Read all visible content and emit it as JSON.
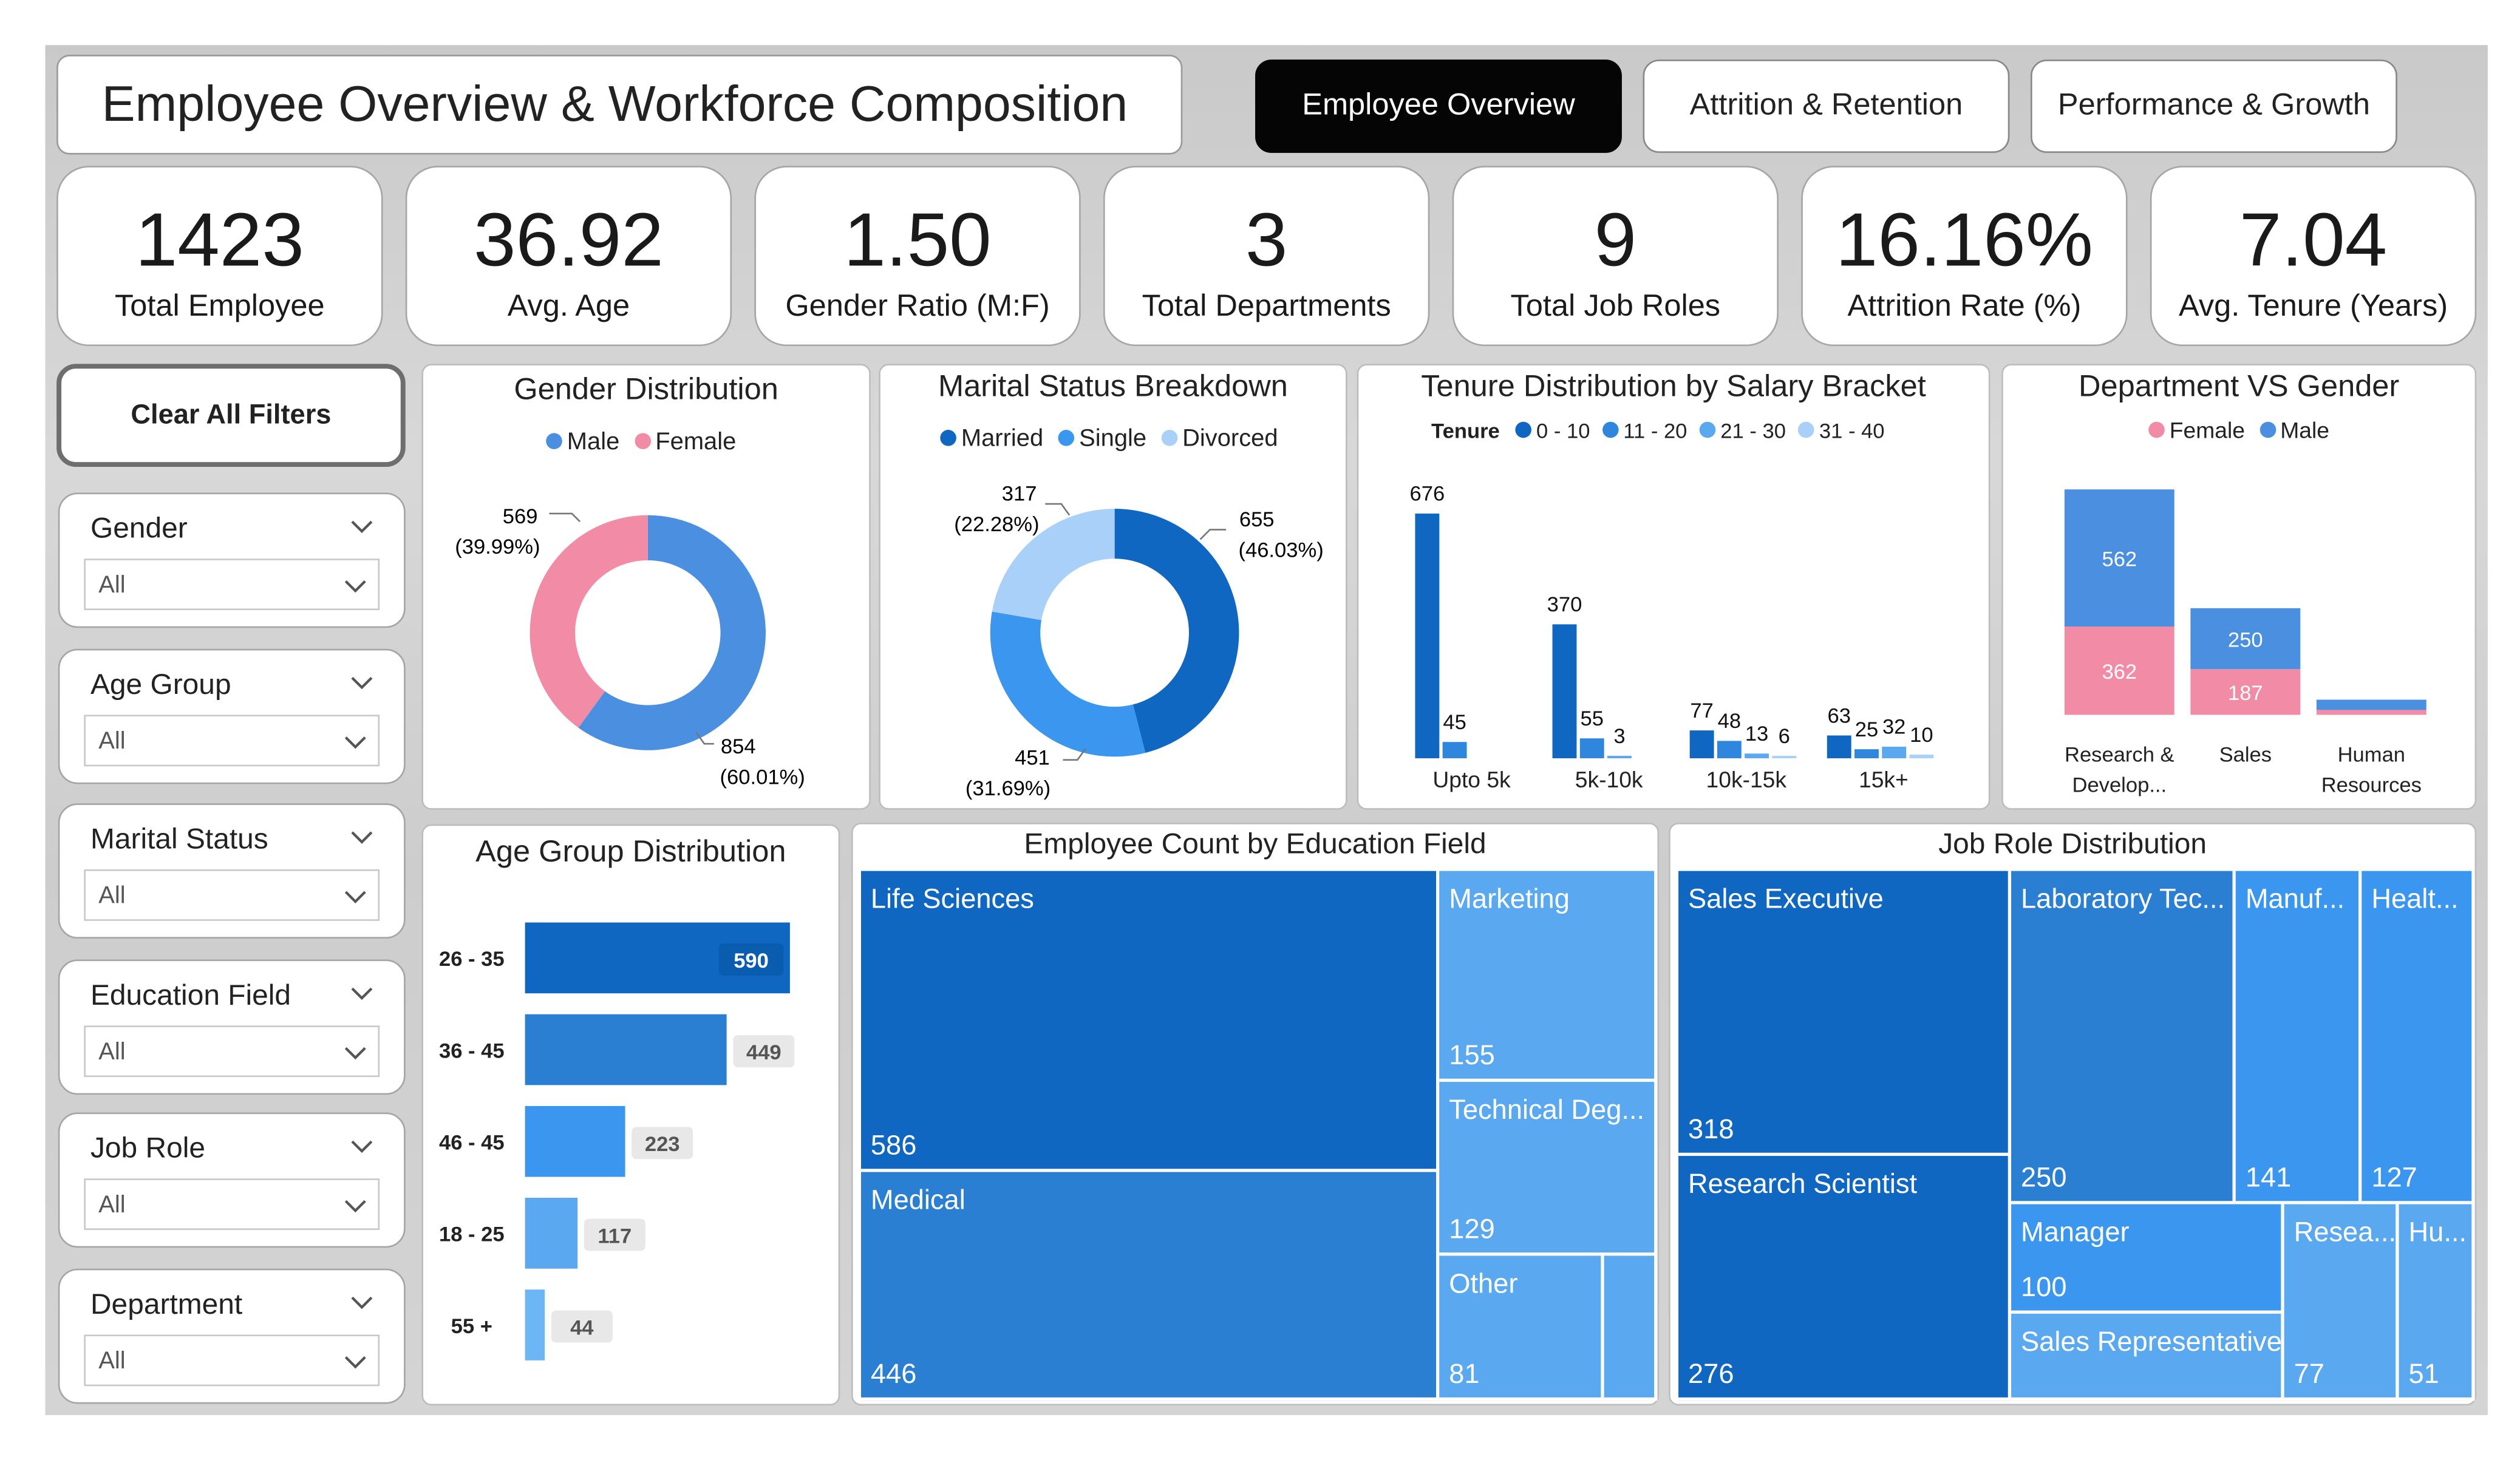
{
  "title": "Employee Overview & Workforce Composition",
  "nav": [
    "Employee Overview",
    "Attrition & Retention",
    "Performance & Growth"
  ],
  "kpis": [
    {
      "value": "1423",
      "label": "Total Employee"
    },
    {
      "value": "36.92",
      "label": "Avg. Age"
    },
    {
      "value": "1.50",
      "label": "Gender Ratio (M:F)"
    },
    {
      "value": "3",
      "label": "Total Departments"
    },
    {
      "value": "9",
      "label": "Total Job Roles"
    },
    {
      "value": "16.16%",
      "label": "Attrition Rate (%)"
    },
    {
      "value": "7.04",
      "label": "Avg. Tenure (Years)"
    }
  ],
  "clear_filters": "Clear All Filters",
  "slicers": [
    {
      "label": "Gender",
      "value": "All"
    },
    {
      "label": "Age Group",
      "value": "All"
    },
    {
      "label": "Marital Status",
      "value": "All"
    },
    {
      "label": "Education Field",
      "value": "All"
    },
    {
      "label": "Job Role",
      "value": "All"
    },
    {
      "label": "Department",
      "value": "All"
    }
  ],
  "colors": {
    "male": "#4a8fe0",
    "female": "#f28ba5",
    "dark": "#0f67c1",
    "mid": "#2f87dd",
    "light": "#59a8f0",
    "lighter": "#a8d0f8"
  },
  "chart_data": [
    {
      "type": "pie",
      "title": "Gender Distribution",
      "legend": [
        "Male",
        "Female"
      ],
      "slices": [
        {
          "name": "Male",
          "value": 854,
          "label": "854",
          "pct": "(60.01%)"
        },
        {
          "name": "Female",
          "value": 569,
          "label": "569",
          "pct": "(39.99%)"
        }
      ]
    },
    {
      "type": "pie",
      "title": "Marital Status Breakdown",
      "legend": [
        "Married",
        "Single",
        "Divorced"
      ],
      "slices": [
        {
          "name": "Married",
          "value": 655,
          "label": "655",
          "pct": "(46.03%)"
        },
        {
          "name": "Single",
          "value": 451,
          "label": "451",
          "pct": "(31.69%)"
        },
        {
          "name": "Divorced",
          "value": 317,
          "label": "317",
          "pct": "(22.28%)"
        }
      ]
    },
    {
      "type": "bar",
      "title": "Tenure Distribution by Salary Bracket",
      "legend_title": "Tenure",
      "categories": [
        "Upto 5k",
        "5k-10k",
        "10k-15k",
        "15k+"
      ],
      "series": [
        {
          "name": "0 - 10",
          "values": [
            676,
            370,
            77,
            63
          ]
        },
        {
          "name": "11 - 20",
          "values": [
            45,
            55,
            48,
            25
          ]
        },
        {
          "name": "21 - 30",
          "values": [
            null,
            3,
            13,
            32
          ]
        },
        {
          "name": "31 - 40",
          "values": [
            null,
            null,
            6,
            10
          ]
        }
      ]
    },
    {
      "type": "bar",
      "title": "Department VS Gender",
      "legend": [
        "Female",
        "Male"
      ],
      "categories": [
        "Research & Develop...",
        "Sales",
        "Human Resources"
      ],
      "series": [
        {
          "name": "Female",
          "values": [
            362,
            187,
            20
          ]
        },
        {
          "name": "Male",
          "values": [
            562,
            250,
            42
          ]
        }
      ]
    },
    {
      "type": "bar",
      "title": "Age Group Distribution",
      "categories": [
        "26 - 35",
        "36 - 45",
        "46 - 45",
        "18 - 25",
        "55 +"
      ],
      "values": [
        590,
        449,
        223,
        117,
        44
      ]
    },
    {
      "type": "table",
      "title": "Employee Count by Education Field",
      "items": [
        {
          "name": "Life Sciences",
          "value": "586"
        },
        {
          "name": "Medical",
          "value": "446"
        },
        {
          "name": "Marketing",
          "value": "155"
        },
        {
          "name": "Technical Deg...",
          "value": "129"
        },
        {
          "name": "Other",
          "value": "81"
        }
      ]
    },
    {
      "type": "table",
      "title": "Job Role Distribution",
      "items": [
        {
          "name": "Sales Executive",
          "value": "318"
        },
        {
          "name": "Research Scientist",
          "value": "276"
        },
        {
          "name": "Laboratory Tec...",
          "value": "250"
        },
        {
          "name": "Manuf...",
          "value": "141"
        },
        {
          "name": "Healt...",
          "value": "127"
        },
        {
          "name": "Manager",
          "value": "100"
        },
        {
          "name": "Sales Representative",
          "value": ""
        },
        {
          "name": "Resea...",
          "value": "77"
        },
        {
          "name": "Hu...",
          "value": "51"
        }
      ]
    }
  ]
}
